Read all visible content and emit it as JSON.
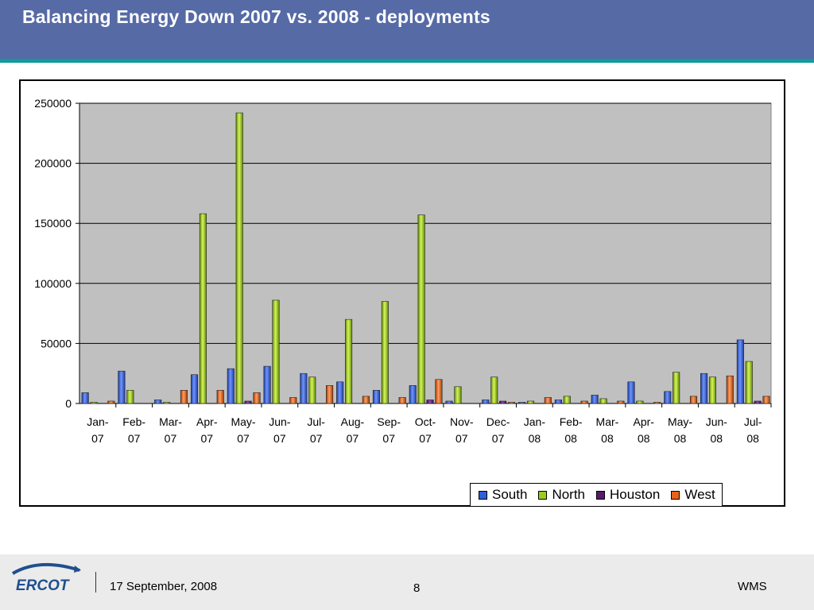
{
  "title": "Balancing Energy Down 2007 vs. 2008 - deployments",
  "footer": {
    "logo_text": "ERCOT",
    "date": "17 September, 2008",
    "page_number": "8",
    "right_text": "WMS"
  },
  "chart_data": {
    "type": "bar",
    "title": "",
    "xlabel": "",
    "ylabel": "",
    "ylim": [
      0,
      250000
    ],
    "yticks": [
      0,
      50000,
      100000,
      150000,
      200000,
      250000
    ],
    "grid": true,
    "legend_position": "bottom-right",
    "categories": [
      [
        "Jan-",
        "07"
      ],
      [
        "Feb-",
        "07"
      ],
      [
        "Mar-",
        "07"
      ],
      [
        "Apr-",
        "07"
      ],
      [
        "May-",
        "07"
      ],
      [
        "Jun-",
        "07"
      ],
      [
        "Jul-",
        "07"
      ],
      [
        "Aug-",
        "07"
      ],
      [
        "Sep-",
        "07"
      ],
      [
        "Oct-",
        "07"
      ],
      [
        "Nov-",
        "07"
      ],
      [
        "Dec-",
        "07"
      ],
      [
        "Jan-",
        "08"
      ],
      [
        "Feb-",
        "08"
      ],
      [
        "Mar-",
        "08"
      ],
      [
        "Apr-",
        "08"
      ],
      [
        "May-",
        "08"
      ],
      [
        "Jun-",
        "08"
      ],
      [
        "Jul-",
        "08"
      ]
    ],
    "series": [
      {
        "name": "South",
        "color": "#2f5fd4",
        "values": [
          9000,
          27000,
          3000,
          24000,
          29000,
          31000,
          25000,
          18000,
          11000,
          15000,
          2000,
          3000,
          1000,
          3000,
          7000,
          18000,
          10000,
          25000,
          53000
        ]
      },
      {
        "name": "North",
        "color": "#9acd1e",
        "values": [
          1000,
          11000,
          1000,
          158000,
          242000,
          86000,
          22000,
          70000,
          85000,
          157000,
          14000,
          22000,
          2000,
          6000,
          4000,
          2000,
          26000,
          22000,
          35000
        ]
      },
      {
        "name": "Houston",
        "color": "#5a1a6e",
        "values": [
          0,
          0,
          0,
          0,
          2000,
          0,
          0,
          0,
          0,
          3000,
          0,
          2000,
          0,
          0,
          0,
          0,
          0,
          0,
          2000
        ]
      },
      {
        "name": "West",
        "color": "#e8621e",
        "values": [
          2000,
          0,
          11000,
          11000,
          9000,
          5000,
          15000,
          6000,
          5000,
          20000,
          0,
          1000,
          5000,
          2000,
          2000,
          1000,
          6000,
          23000,
          6000
        ]
      }
    ]
  }
}
